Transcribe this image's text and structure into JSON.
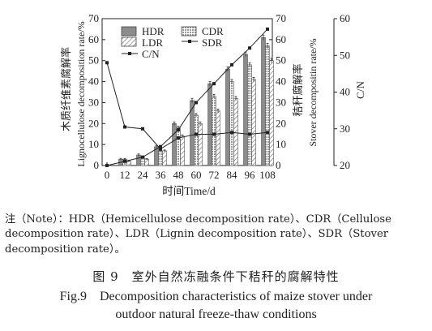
{
  "chart_data": {
    "type": "bar",
    "x": [
      0,
      12,
      24,
      36,
      48,
      60,
      72,
      84,
      96,
      108
    ],
    "xlabel": "时间Time/d",
    "ylabel_left_cn": "木质纤维素腐解率",
    "ylabel_left_en": "Lignocellulose decomposition rate/%",
    "ylabel_right_cn": "秸秆腐解率",
    "ylabel_right_en": "Stover decompositin rate/%",
    "ylabel_cn_axis": "C/N",
    "ylim_left": [
      0,
      70
    ],
    "ylim_right": [
      0,
      70
    ],
    "ylim_cn": [
      20,
      60
    ],
    "yticks_left": [
      0,
      10,
      20,
      30,
      40,
      50,
      60,
      70
    ],
    "yticks_right": [
      0,
      10,
      20,
      30,
      40,
      50,
      60,
      70
    ],
    "yticks_cn": [
      20,
      30,
      40,
      50,
      60
    ],
    "xticks": [
      0,
      12,
      24,
      36,
      48,
      60,
      72,
      84,
      96,
      108
    ],
    "legend": [
      "HDR",
      "CDR",
      "LDR",
      "SDR",
      "C/N"
    ],
    "bar_series": [
      {
        "name": "HDR",
        "values": [
          0,
          3,
          5,
          9,
          20,
          31,
          39,
          46,
          53,
          61
        ],
        "err": [
          0,
          0.4,
          0.5,
          0.6,
          0.8,
          1.0,
          1.0,
          1.0,
          1.1,
          1.2
        ]
      },
      {
        "name": "CDR",
        "values": [
          0,
          3,
          4,
          7,
          18,
          24,
          33,
          40,
          48,
          57
        ],
        "err": [
          0,
          0.3,
          0.4,
          0.5,
          0.8,
          0.8,
          0.9,
          1.0,
          1.0,
          1.2
        ]
      },
      {
        "name": "LDR",
        "values": [
          0,
          2,
          3,
          7,
          14,
          20,
          26,
          32,
          41,
          50
        ],
        "err": [
          0,
          0.3,
          0.3,
          0.4,
          0.6,
          0.8,
          0.9,
          0.9,
          1.0,
          1.1
        ]
      }
    ],
    "line_series": [
      {
        "name": "SDR",
        "axis": "right",
        "values": [
          0,
          2,
          4,
          9,
          17,
          30,
          39,
          48,
          56,
          65
        ]
      },
      {
        "name": "C/N",
        "axis": "cn",
        "values": [
          48,
          30.5,
          30,
          24.5,
          27.5,
          28.5,
          28.5,
          29,
          28.5,
          29
        ]
      }
    ]
  },
  "note_text": "注（Note）：HDR（Hemicellulose decomposition rate）、CDR（Cellulose decomposition rate）、LDR（Lignin decomposition rate）、SDR（Stover decomposition rate）。",
  "figure": {
    "cn_caption": "图 9　室外自然冻融条件下秸秆的腐解特性",
    "en_caption_line1": "Fig.9　Decomposition characteristics of maize stover under",
    "en_caption_line2": "outdoor natural freeze-thaw conditions"
  }
}
